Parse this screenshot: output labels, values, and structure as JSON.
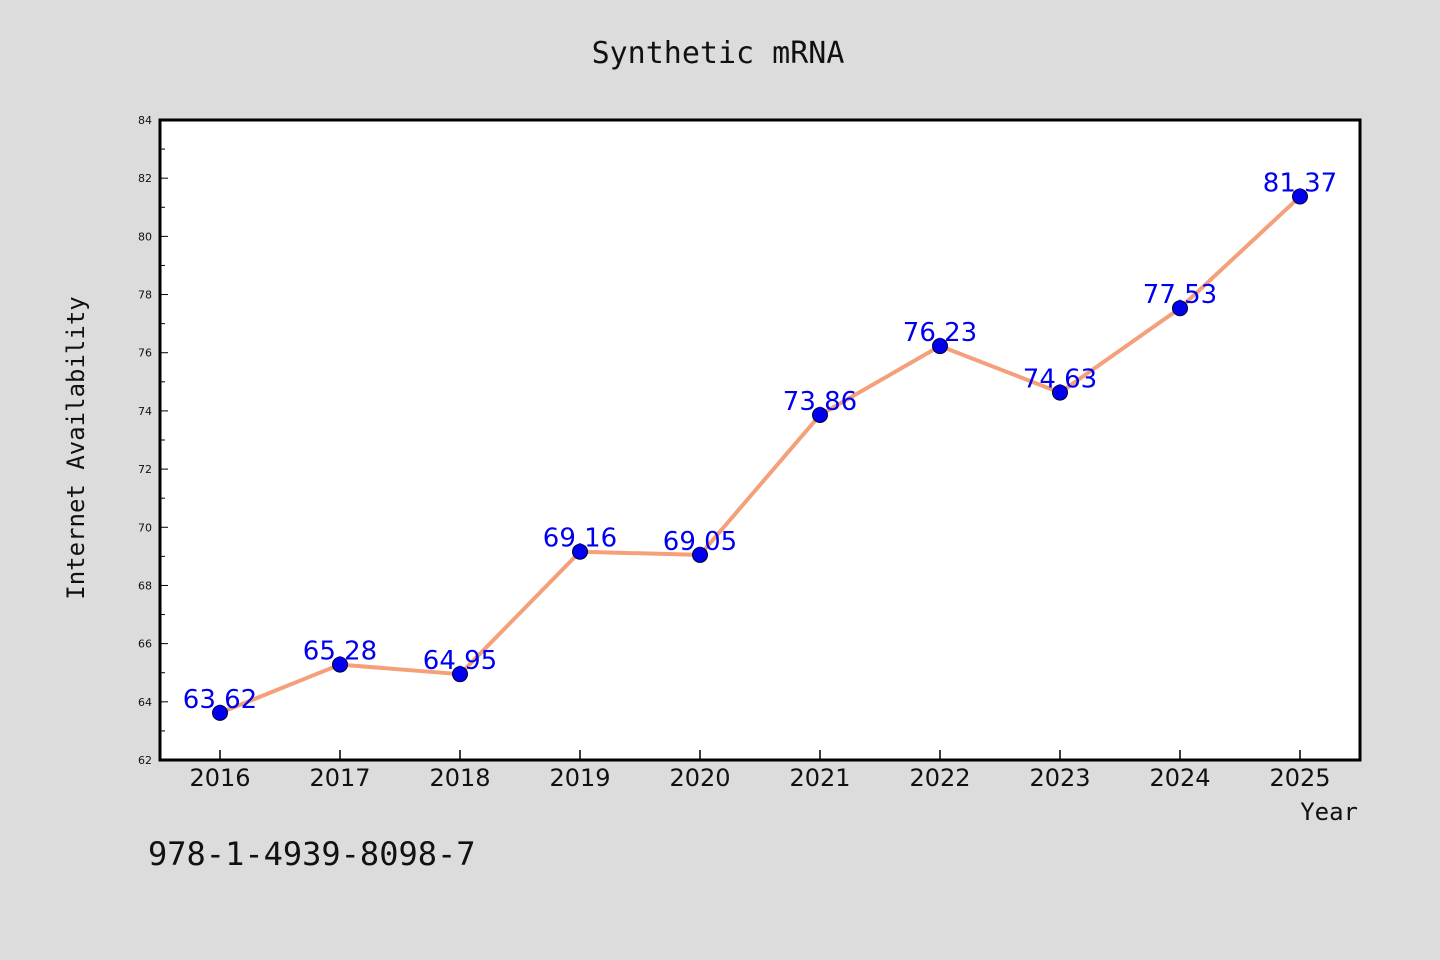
{
  "footer": {
    "isbn": "978-1-4939-8098-7"
  },
  "colors": {
    "background": "#dcdcdc",
    "plot_background": "#ffffff",
    "line": "#f4a07a",
    "marker": "#0000ee",
    "label": "#0000ee"
  },
  "chart_data": {
    "type": "line",
    "title": "Synthetic mRNA",
    "xlabel": "Year",
    "ylabel": "Internet Availability",
    "categories": [
      "2016",
      "2017",
      "2018",
      "2019",
      "2020",
      "2021",
      "2022",
      "2023",
      "2024",
      "2025"
    ],
    "series": [
      {
        "values": [
          63.62,
          65.28,
          64.95,
          69.16,
          69.05,
          73.86,
          76.23,
          74.63,
          77.53,
          81.37
        ]
      }
    ],
    "data_labels": [
      "63.62",
      "65.28",
      "64.95",
      "69.16",
      "69.05",
      "73.86",
      "76.23",
      "74.63",
      "77.53",
      "81.37"
    ],
    "ylim": [
      62,
      84
    ],
    "yticks": [
      "62",
      "64",
      "66",
      "68",
      "70",
      "72",
      "74",
      "76",
      "78",
      "80",
      "82",
      "84"
    ],
    "grid": false,
    "legend": "none",
    "markers": "circle"
  }
}
